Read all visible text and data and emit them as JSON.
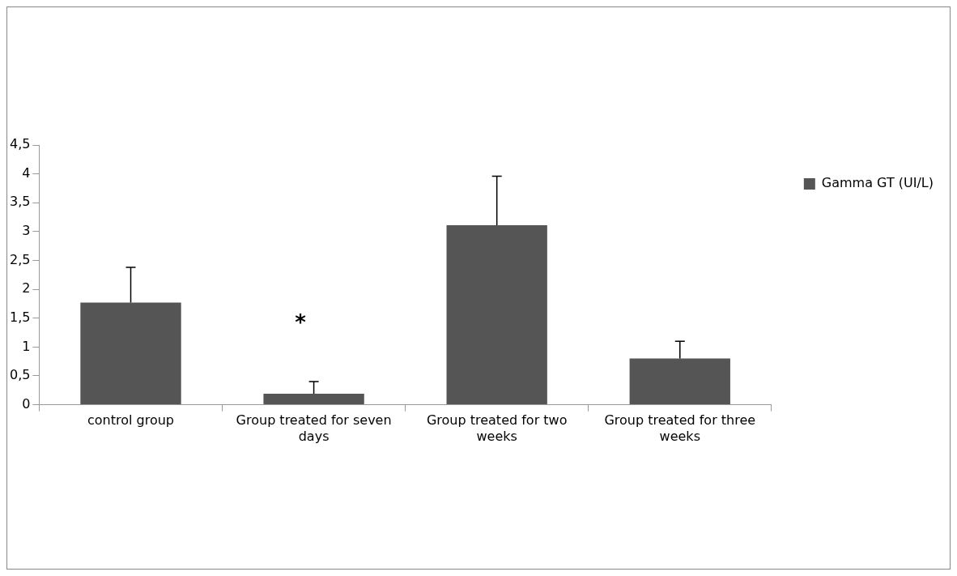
{
  "chart_data": {
    "type": "bar",
    "categories": [
      "control group",
      "Group treated for seven days",
      "Group treated for two weeks",
      "Group treated for three weeks"
    ],
    "series": [
      {
        "name": "Gamma GT (UI/L)",
        "color": "#555555",
        "values": [
          1.77,
          0.19,
          3.11,
          0.8
        ],
        "errors": [
          [
            1.77,
            2.38
          ],
          [
            0.19,
            0.4
          ],
          [
            3.11,
            3.96
          ],
          [
            0.8,
            1.1
          ]
        ]
      }
    ],
    "ylim": [
      0,
      4.5
    ],
    "yticks": [
      0,
      {
        "value": 0.5,
        "label": "0,5"
      },
      1,
      {
        "value": 1.5,
        "label": "1,5"
      },
      2,
      {
        "value": 2.5,
        "label": "2,5"
      },
      3,
      {
        "value": 3.5,
        "label": "3,5"
      },
      4,
      {
        "value": 4.5,
        "label": "4,5"
      }
    ],
    "grid": false,
    "legend": "right",
    "annotations": [
      "*"
    ]
  }
}
